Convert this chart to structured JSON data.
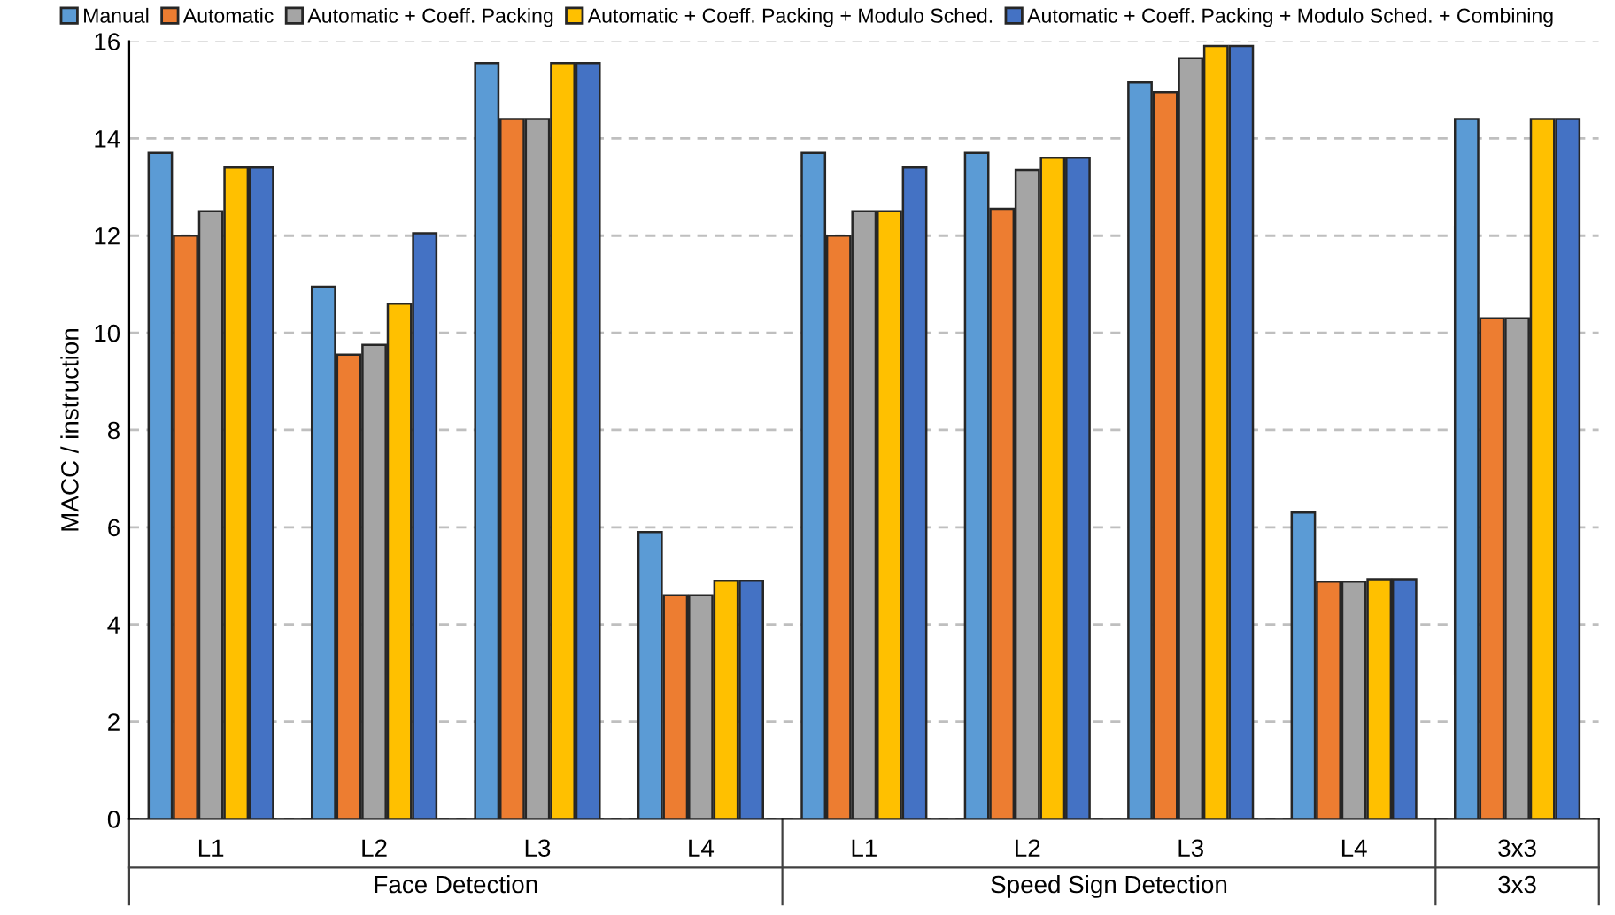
{
  "chart_data": {
    "type": "bar",
    "ylabel": "MACC / instruction",
    "categories": [
      "L1",
      "L2",
      "L3",
      "L4",
      "L1",
      "L2",
      "L3",
      "L4",
      "3x3"
    ],
    "series": [
      {
        "name": "Manual",
        "color": "#5b9bd5",
        "values": [
          13.7,
          10.95,
          15.55,
          5.9,
          13.7,
          13.7,
          15.15,
          6.3,
          14.4
        ]
      },
      {
        "name": "Automatic",
        "color": "#ed7d31",
        "values": [
          12.0,
          9.55,
          14.4,
          4.6,
          12.0,
          12.55,
          14.95,
          4.88,
          10.3
        ]
      },
      {
        "name": "Automatic + Coeff. Packing",
        "color": "#a5a5a5",
        "values": [
          12.5,
          9.75,
          14.4,
          4.6,
          12.5,
          13.35,
          15.65,
          4.88,
          10.3
        ]
      },
      {
        "name": "Automatic + Coeff. Packing + Modulo Sched.",
        "color": "#ffc000",
        "values": [
          13.4,
          10.6,
          15.55,
          4.9,
          12.5,
          13.6,
          15.9,
          4.93,
          14.4
        ]
      },
      {
        "name": "Automatic + Coeff. Packing + Modulo Sched. + Combining",
        "color": "#4472c4",
        "values": [
          13.4,
          12.05,
          15.55,
          4.9,
          13.4,
          13.6,
          15.9,
          4.93,
          14.4
        ]
      }
    ],
    "annotations": [
      "Face Detection",
      "Speed Sign Detection",
      "3x3"
    ],
    "ylim": [
      0,
      16
    ],
    "yticks": [
      0,
      2,
      4,
      6,
      8,
      10,
      12,
      14,
      16
    ],
    "grid": "y",
    "legend": "top"
  }
}
